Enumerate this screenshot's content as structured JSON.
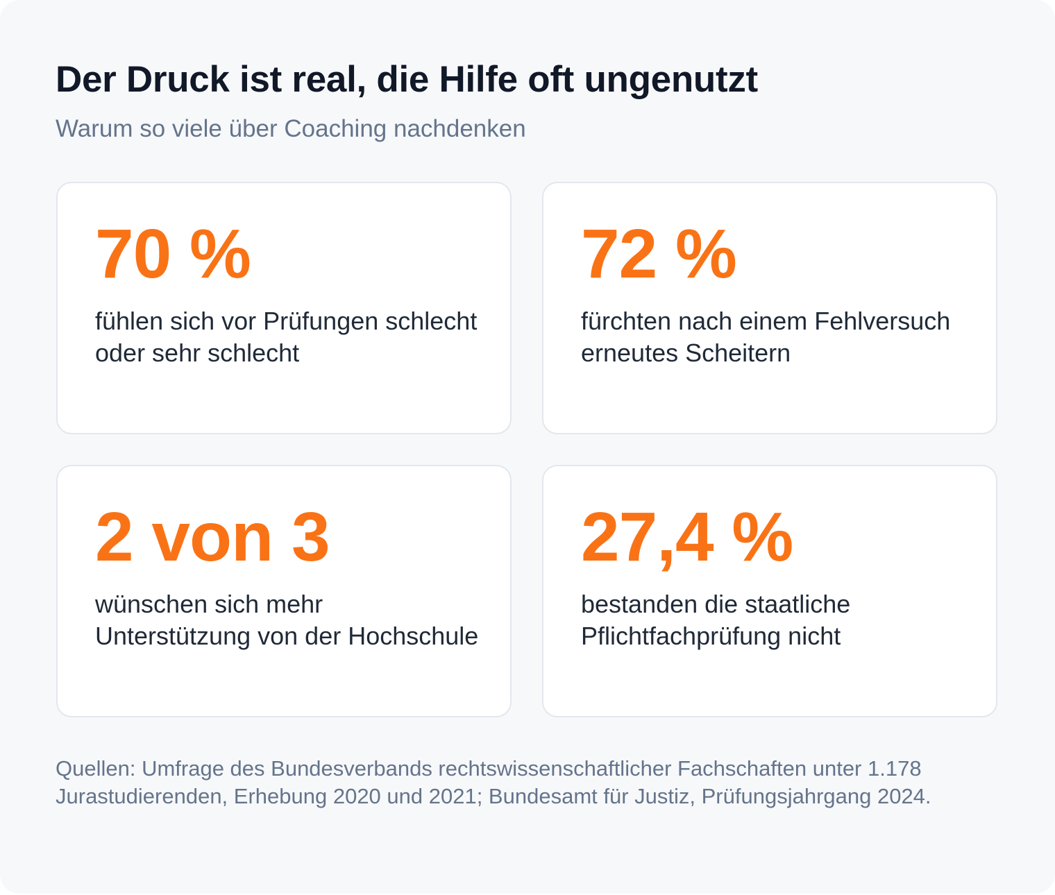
{
  "header": {
    "title": "Der Druck ist real, die Hilfe oft ungenutzt",
    "subtitle": "Warum so viele über Coaching nachdenken"
  },
  "stats": [
    {
      "value": "70 %",
      "label": "fühlen sich vor Prüfungen schlecht oder sehr schlecht"
    },
    {
      "value": "72 %",
      "label": "fürchten nach einem Fehlversuch erneutes Scheitern"
    },
    {
      "value": "2 von 3",
      "label": "wünschen sich mehr Unterstützung von der Hochschule"
    },
    {
      "value": "27,4 %",
      "label": "bestanden die staatliche Pflichtfachprüfung nicht"
    }
  ],
  "footer": {
    "sources": "Quellen: Umfrage des Bundesverbands rechtswissenschaftlicher Fachschaften unter 1.178 Jurastudierenden, Erhebung 2020 und 2021; Bundesamt für Justiz, Prüfungsjahrgang 2024."
  },
  "colors": {
    "accent": "#f97316",
    "heading": "#111827",
    "muted": "#64748b",
    "body_text": "#1f2937",
    "background": "#f7f8fa",
    "card_background": "#ffffff",
    "card_border": "#e3e7ed"
  }
}
